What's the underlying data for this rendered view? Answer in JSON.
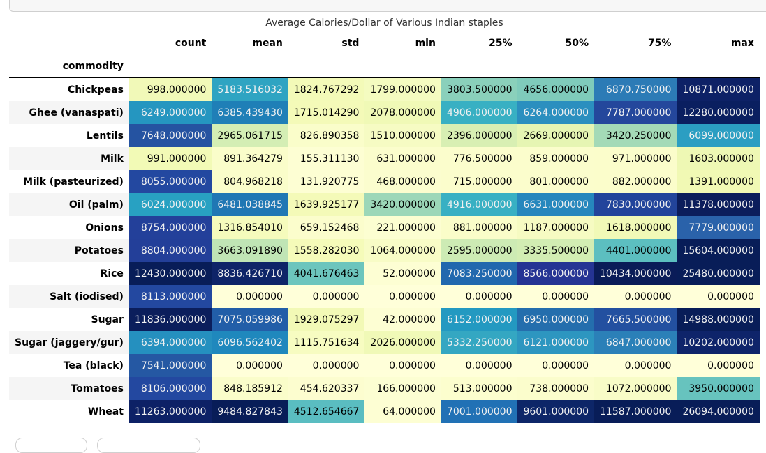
{
  "table": {
    "caption": "Average Calories/Dollar of Various Indian staples",
    "index_name": "commodity",
    "columns": [
      "count",
      "mean",
      "std",
      "min",
      "25%",
      "50%",
      "75%",
      "max"
    ],
    "rows": [
      {
        "label": "Chickpeas",
        "highlighted": true,
        "cells": [
          {
            "v": "998.000000",
            "bg": "#f1f9b8",
            "fg": "#000000"
          },
          {
            "v": "5183.516032",
            "bg": "#2fa4c2",
            "fg": "#f1f1f1"
          },
          {
            "v": "1824.767292",
            "bg": "#f3fab8",
            "fg": "#000000"
          },
          {
            "v": "1799.000000",
            "bg": "#f4fbc0",
            "fg": "#000000"
          },
          {
            "v": "3803.500000",
            "bg": "#8ad0bb",
            "fg": "#000000"
          },
          {
            "v": "4656.000000",
            "bg": "#7fcbbb",
            "fg": "#000000"
          },
          {
            "v": "6870.750000",
            "bg": "#2c7bb6",
            "fg": "#f1f1f1"
          },
          {
            "v": "10871.000000",
            "bg": "#0d2166",
            "fg": "#f1f1f1"
          }
        ]
      },
      {
        "label": "Ghee (vanaspati)",
        "highlighted": false,
        "cells": [
          {
            "v": "6249.000000",
            "bg": "#2596c0",
            "fg": "#f1f1f1"
          },
          {
            "v": "6385.439430",
            "bg": "#1f7fb7",
            "fg": "#f1f1f1"
          },
          {
            "v": "1715.014290",
            "bg": "#f4fab8",
            "fg": "#000000"
          },
          {
            "v": "2078.000000",
            "bg": "#f0f9b6",
            "fg": "#000000"
          },
          {
            "v": "4906.000000",
            "bg": "#38b0c3",
            "fg": "#f1f1f1"
          },
          {
            "v": "6264.000000",
            "bg": "#2b8fbf",
            "fg": "#f1f1f1"
          },
          {
            "v": "7787.000000",
            "bg": "#24479c",
            "fg": "#f1f1f1"
          },
          {
            "v": "12280.000000",
            "bg": "#0a1f60",
            "fg": "#f1f1f1"
          }
        ]
      },
      {
        "label": "Lentils",
        "highlighted": false,
        "cells": [
          {
            "v": "7648.000000",
            "bg": "#2553a1",
            "fg": "#f1f1f1"
          },
          {
            "v": "2965.061715",
            "bg": "#d4eeb4",
            "fg": "#000000"
          },
          {
            "v": "826.890358",
            "bg": "#fafdca",
            "fg": "#000000"
          },
          {
            "v": "1510.000000",
            "bg": "#f6fbc3",
            "fg": "#000000"
          },
          {
            "v": "2396.000000",
            "bg": "#d8efb3",
            "fg": "#000000"
          },
          {
            "v": "2669.000000",
            "bg": "#e6f5b3",
            "fg": "#000000"
          },
          {
            "v": "3420.250000",
            "bg": "#a4dab7",
            "fg": "#000000"
          },
          {
            "v": "6099.000000",
            "bg": "#2b9ec2",
            "fg": "#f1f1f1"
          }
        ]
      },
      {
        "label": "Milk",
        "highlighted": false,
        "cells": [
          {
            "v": "991.000000",
            "bg": "#f2fab6",
            "fg": "#000000"
          },
          {
            "v": "891.364279",
            "bg": "#fafdca",
            "fg": "#000000"
          },
          {
            "v": "155.311130",
            "bg": "#fdfed3",
            "fg": "#000000"
          },
          {
            "v": "631.000000",
            "bg": "#fbfdcc",
            "fg": "#000000"
          },
          {
            "v": "776.500000",
            "bg": "#fbfdcc",
            "fg": "#000000"
          },
          {
            "v": "859.000000",
            "bg": "#fbfdcc",
            "fg": "#000000"
          },
          {
            "v": "971.000000",
            "bg": "#fbfdcb",
            "fg": "#000000"
          },
          {
            "v": "1603.000000",
            "bg": "#eef8b4",
            "fg": "#000000"
          }
        ]
      },
      {
        "label": "Milk (pasteurized)",
        "highlighted": false,
        "cells": [
          {
            "v": "8055.000000",
            "bg": "#2348a0",
            "fg": "#f1f1f1"
          },
          {
            "v": "804.968218",
            "bg": "#fafdca",
            "fg": "#000000"
          },
          {
            "v": "131.920775",
            "bg": "#fdfed3",
            "fg": "#000000"
          },
          {
            "v": "468.000000",
            "bg": "#fbfdce",
            "fg": "#000000"
          },
          {
            "v": "715.000000",
            "bg": "#fbfdcc",
            "fg": "#000000"
          },
          {
            "v": "801.000000",
            "bg": "#fbfdcc",
            "fg": "#000000"
          },
          {
            "v": "882.000000",
            "bg": "#fbfdcb",
            "fg": "#000000"
          },
          {
            "v": "1391.000000",
            "bg": "#f1f9b4",
            "fg": "#000000"
          }
        ]
      },
      {
        "label": "Oil (palm)",
        "highlighted": false,
        "cells": [
          {
            "v": "6024.000000",
            "bg": "#28a1c2",
            "fg": "#f1f1f1"
          },
          {
            "v": "6481.038845",
            "bg": "#2077b4",
            "fg": "#f1f1f1"
          },
          {
            "v": "1639.925177",
            "bg": "#f4fab8",
            "fg": "#000000"
          },
          {
            "v": "3420.000000",
            "bg": "#9cd7b8",
            "fg": "#000000"
          },
          {
            "v": "4916.000000",
            "bg": "#38b0c3",
            "fg": "#f1f1f1"
          },
          {
            "v": "6631.000000",
            "bg": "#2687bd",
            "fg": "#f1f1f1"
          },
          {
            "v": "7830.000000",
            "bg": "#22449b",
            "fg": "#f1f1f1"
          },
          {
            "v": "11378.000000",
            "bg": "#0b1d5b",
            "fg": "#f1f1f1"
          }
        ]
      },
      {
        "label": "Onions",
        "highlighted": false,
        "cells": [
          {
            "v": "8754.000000",
            "bg": "#23409a",
            "fg": "#f1f1f1"
          },
          {
            "v": "1316.854010",
            "bg": "#f5fbbc",
            "fg": "#000000"
          },
          {
            "v": "659.152468",
            "bg": "#fbfdcc",
            "fg": "#000000"
          },
          {
            "v": "221.000000",
            "bg": "#fcfed1",
            "fg": "#000000"
          },
          {
            "v": "881.000000",
            "bg": "#fafdc9",
            "fg": "#000000"
          },
          {
            "v": "1187.000000",
            "bg": "#f6fbc2",
            "fg": "#000000"
          },
          {
            "v": "1618.000000",
            "bg": "#f1f9b7",
            "fg": "#000000"
          },
          {
            "v": "7779.000000",
            "bg": "#2a62aa",
            "fg": "#f1f1f1"
          }
        ]
      },
      {
        "label": "Potatoes",
        "highlighted": false,
        "cells": [
          {
            "v": "8804.000000",
            "bg": "#233f99",
            "fg": "#f1f1f1"
          },
          {
            "v": "3663.091890",
            "bg": "#c0e5b5",
            "fg": "#000000"
          },
          {
            "v": "1558.282030",
            "bg": "#f5fbb9",
            "fg": "#000000"
          },
          {
            "v": "1064.000000",
            "bg": "#f8fcc6",
            "fg": "#000000"
          },
          {
            "v": "2595.000000",
            "bg": "#cdebb4",
            "fg": "#000000"
          },
          {
            "v": "3335.500000",
            "bg": "#d2edb3",
            "fg": "#000000"
          },
          {
            "v": "4401.000000",
            "bg": "#5cbfc0",
            "fg": "#000000"
          },
          {
            "v": "15604.000000",
            "bg": "#081d58",
            "fg": "#f1f1f1"
          }
        ]
      },
      {
        "label": "Rice",
        "highlighted": false,
        "cells": [
          {
            "v": "12430.000000",
            "bg": "#081d58",
            "fg": "#f1f1f1"
          },
          {
            "v": "8836.426710",
            "bg": "#0e2468",
            "fg": "#f1f1f1"
          },
          {
            "v": "4041.676463",
            "bg": "#6cc5bd",
            "fg": "#000000"
          },
          {
            "v": "52.000000",
            "bg": "#fdfed3",
            "fg": "#000000"
          },
          {
            "v": "7083.250000",
            "bg": "#2168ae",
            "fg": "#f1f1f1"
          },
          {
            "v": "8566.000000",
            "bg": "#253494",
            "fg": "#f1f1f1"
          },
          {
            "v": "10434.000000",
            "bg": "#0a1c58",
            "fg": "#f1f1f1"
          },
          {
            "v": "25480.000000",
            "bg": "#081d58",
            "fg": "#f1f1f1"
          }
        ]
      },
      {
        "label": "Salt (iodised)",
        "highlighted": false,
        "cells": [
          {
            "v": "8113.000000",
            "bg": "#2348a0",
            "fg": "#f1f1f1"
          },
          {
            "v": "0.000000",
            "bg": "#ffffd9",
            "fg": "#000000"
          },
          {
            "v": "0.000000",
            "bg": "#ffffd9",
            "fg": "#000000"
          },
          {
            "v": "0.000000",
            "bg": "#ffffd9",
            "fg": "#000000"
          },
          {
            "v": "0.000000",
            "bg": "#ffffd9",
            "fg": "#000000"
          },
          {
            "v": "0.000000",
            "bg": "#ffffd9",
            "fg": "#000000"
          },
          {
            "v": "0.000000",
            "bg": "#ffffd9",
            "fg": "#000000"
          },
          {
            "v": "0.000000",
            "bg": "#ffffd9",
            "fg": "#000000"
          }
        ]
      },
      {
        "label": "Sugar",
        "highlighted": false,
        "cells": [
          {
            "v": "11836.000000",
            "bg": "#0b1e5c",
            "fg": "#f1f1f1"
          },
          {
            "v": "7075.059986",
            "bg": "#225ea8",
            "fg": "#f1f1f1"
          },
          {
            "v": "1929.075297",
            "bg": "#f2f9b6",
            "fg": "#000000"
          },
          {
            "v": "42.000000",
            "bg": "#fdfed3",
            "fg": "#000000"
          },
          {
            "v": "6152.000000",
            "bg": "#2399c1",
            "fg": "#f1f1f1"
          },
          {
            "v": "6950.000000",
            "bg": "#246ead",
            "fg": "#f1f1f1"
          },
          {
            "v": "7665.500000",
            "bg": "#2350a0",
            "fg": "#f1f1f1"
          },
          {
            "v": "14988.000000",
            "bg": "#081d58",
            "fg": "#f1f1f1"
          }
        ]
      },
      {
        "label": "Sugar (jaggery/gur)",
        "highlighted": false,
        "cells": [
          {
            "v": "6394.000000",
            "bg": "#2590bf",
            "fg": "#f1f1f1"
          },
          {
            "v": "6096.562402",
            "bg": "#1f88bd",
            "fg": "#f1f1f1"
          },
          {
            "v": "1115.751634",
            "bg": "#f7fcc1",
            "fg": "#000000"
          },
          {
            "v": "2026.000000",
            "bg": "#f0f9b7",
            "fg": "#000000"
          },
          {
            "v": "5332.250000",
            "bg": "#34a7c2",
            "fg": "#f1f1f1"
          },
          {
            "v": "6121.000000",
            "bg": "#2d96c0",
            "fg": "#f1f1f1"
          },
          {
            "v": "6847.000000",
            "bg": "#2b80b8",
            "fg": "#f1f1f1"
          },
          {
            "v": "10202.000000",
            "bg": "#0e246a",
            "fg": "#f1f1f1"
          }
        ]
      },
      {
        "label": "Tea (black)",
        "highlighted": false,
        "cells": [
          {
            "v": "7541.000000",
            "bg": "#2558a3",
            "fg": "#f1f1f1"
          },
          {
            "v": "0.000000",
            "bg": "#ffffd9",
            "fg": "#000000"
          },
          {
            "v": "0.000000",
            "bg": "#ffffd9",
            "fg": "#000000"
          },
          {
            "v": "0.000000",
            "bg": "#ffffd9",
            "fg": "#000000"
          },
          {
            "v": "0.000000",
            "bg": "#ffffd9",
            "fg": "#000000"
          },
          {
            "v": "0.000000",
            "bg": "#ffffd9",
            "fg": "#000000"
          },
          {
            "v": "0.000000",
            "bg": "#ffffd9",
            "fg": "#000000"
          },
          {
            "v": "0.000000",
            "bg": "#ffffd9",
            "fg": "#000000"
          }
        ]
      },
      {
        "label": "Tomatoes",
        "highlighted": false,
        "cells": [
          {
            "v": "8106.000000",
            "bg": "#2348a0",
            "fg": "#f1f1f1"
          },
          {
            "v": "848.185912",
            "bg": "#fafdca",
            "fg": "#000000"
          },
          {
            "v": "454.620337",
            "bg": "#fcfdcf",
            "fg": "#000000"
          },
          {
            "v": "166.000000",
            "bg": "#fcfed2",
            "fg": "#000000"
          },
          {
            "v": "513.000000",
            "bg": "#fcfece",
            "fg": "#000000"
          },
          {
            "v": "738.000000",
            "bg": "#fbfdcc",
            "fg": "#000000"
          },
          {
            "v": "1072.000000",
            "bg": "#f8fcc7",
            "fg": "#000000"
          },
          {
            "v": "3950.000000",
            "bg": "#67c3be",
            "fg": "#000000"
          }
        ]
      },
      {
        "label": "Wheat",
        "highlighted": false,
        "cells": [
          {
            "v": "11263.000000",
            "bg": "#0d2166",
            "fg": "#f1f1f1"
          },
          {
            "v": "9484.827843",
            "bg": "#081d58",
            "fg": "#f1f1f1"
          },
          {
            "v": "4512.654667",
            "bg": "#5abdc1",
            "fg": "#000000"
          },
          {
            "v": "64.000000",
            "bg": "#fdfed3",
            "fg": "#000000"
          },
          {
            "v": "7001.000000",
            "bg": "#2171b5",
            "fg": "#f1f1f1"
          },
          {
            "v": "9601.000000",
            "bg": "#0d2668",
            "fg": "#f1f1f1"
          },
          {
            "v": "11587.000000",
            "bg": "#081d58",
            "fg": "#f1f1f1"
          },
          {
            "v": "26094.000000",
            "bg": "#081d58",
            "fg": "#f1f1f1"
          }
        ]
      }
    ]
  }
}
